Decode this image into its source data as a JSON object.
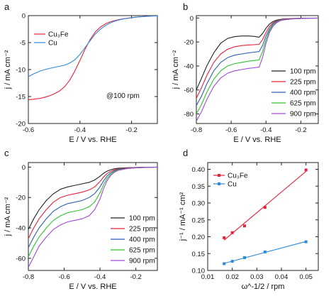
{
  "chart_data": [
    {
      "panel": "a",
      "type": "line",
      "xlabel": "E / V vs. RHE",
      "ylabel": "j / mA cm⁻²",
      "xlim": [
        -0.6,
        -0.1
      ],
      "ylim": [
        -20,
        0
      ],
      "xticks": [
        -0.6,
        -0.4,
        -0.2
      ],
      "yticks": [
        -20,
        -15,
        -10,
        -5,
        0
      ],
      "annotation": "@100 rpm",
      "legend_position": "top-left",
      "series": [
        {
          "name": "Cu₃Fe",
          "color": "#e8213a",
          "x": [
            -0.6,
            -0.58,
            -0.55,
            -0.52,
            -0.5,
            -0.48,
            -0.46,
            -0.44,
            -0.42,
            -0.4,
            -0.38,
            -0.36,
            -0.34,
            -0.32,
            -0.3,
            -0.28,
            -0.26,
            -0.24,
            -0.22,
            -0.2,
            -0.18,
            -0.16,
            -0.14,
            -0.12,
            -0.1
          ],
          "y": [
            -15.6,
            -15.5,
            -15.3,
            -14.9,
            -14.5,
            -14.0,
            -13.2,
            -12.0,
            -10.3,
            -8.3,
            -6.2,
            -4.4,
            -3.0,
            -2.1,
            -1.5,
            -1.1,
            -0.85,
            -0.65,
            -0.5,
            -0.38,
            -0.28,
            -0.2,
            -0.13,
            -0.08,
            -0.05
          ]
        },
        {
          "name": "Cu",
          "color": "#2b8ad8",
          "x": [
            -0.6,
            -0.58,
            -0.55,
            -0.52,
            -0.5,
            -0.48,
            -0.46,
            -0.44,
            -0.42,
            -0.4,
            -0.38,
            -0.36,
            -0.34,
            -0.32,
            -0.3,
            -0.28,
            -0.26,
            -0.24,
            -0.22,
            -0.2,
            -0.18,
            -0.16,
            -0.14,
            -0.12,
            -0.1
          ],
          "y": [
            -11.3,
            -10.8,
            -10.2,
            -9.8,
            -9.6,
            -9.4,
            -9.2,
            -8.8,
            -8.2,
            -7.2,
            -5.9,
            -4.6,
            -3.4,
            -2.5,
            -1.8,
            -1.3,
            -0.95,
            -0.7,
            -0.52,
            -0.38,
            -0.28,
            -0.2,
            -0.13,
            -0.08,
            -0.05
          ]
        }
      ]
    },
    {
      "panel": "b",
      "type": "line",
      "xlabel": "E / V vs. RHE",
      "ylabel": "j / mA cm⁻²",
      "xlim": [
        -0.8,
        -0.1
      ],
      "ylim": [
        -88,
        2
      ],
      "xticks": [
        -0.8,
        -0.6,
        -0.4,
        -0.2
      ],
      "yticks": [
        -80,
        -60,
        -40,
        -20,
        0
      ],
      "legend_position": "bottom-right",
      "series": [
        {
          "name": "100 rpm",
          "color": "#222222",
          "x": [
            -0.8,
            -0.77,
            -0.74,
            -0.7,
            -0.66,
            -0.62,
            -0.58,
            -0.54,
            -0.5,
            -0.47,
            -0.44,
            -0.42,
            -0.4,
            -0.38,
            -0.36,
            -0.34,
            -0.32,
            -0.3,
            -0.25,
            -0.2,
            -0.15,
            -0.1
          ],
          "y": [
            -60,
            -50,
            -40,
            -29,
            -21,
            -17,
            -15.5,
            -15,
            -15,
            -15.3,
            -16,
            -13,
            -8.5,
            -5,
            -3,
            -1.8,
            -1.2,
            -0.8,
            -0.4,
            -0.2,
            -0.1,
            -0.05
          ]
        },
        {
          "name": "225 rpm",
          "color": "#e8213a",
          "x": [
            -0.8,
            -0.77,
            -0.74,
            -0.7,
            -0.66,
            -0.62,
            -0.58,
            -0.54,
            -0.5,
            -0.47,
            -0.44,
            -0.42,
            -0.4,
            -0.38,
            -0.36,
            -0.34,
            -0.32,
            -0.3,
            -0.25,
            -0.2,
            -0.15,
            -0.1
          ],
          "y": [
            -67,
            -58,
            -48,
            -37,
            -30,
            -26,
            -24,
            -23,
            -22.5,
            -22.3,
            -22,
            -18,
            -12,
            -7,
            -4,
            -2.4,
            -1.5,
            -1.0,
            -0.5,
            -0.25,
            -0.12,
            -0.05
          ]
        },
        {
          "name": "400 rpm",
          "color": "#2d5fb5",
          "x": [
            -0.8,
            -0.77,
            -0.74,
            -0.7,
            -0.66,
            -0.62,
            -0.58,
            -0.54,
            -0.5,
            -0.47,
            -0.44,
            -0.42,
            -0.4,
            -0.38,
            -0.36,
            -0.34,
            -0.32,
            -0.3,
            -0.25,
            -0.2,
            -0.15,
            -0.1
          ],
          "y": [
            -73,
            -65,
            -55,
            -44,
            -37,
            -33,
            -31,
            -30,
            -29,
            -28.5,
            -28,
            -23,
            -15,
            -9,
            -5,
            -3,
            -1.8,
            -1.2,
            -0.6,
            -0.3,
            -0.14,
            -0.05
          ]
        },
        {
          "name": "625 rpm",
          "color": "#2ec22e",
          "x": [
            -0.8,
            -0.77,
            -0.74,
            -0.7,
            -0.66,
            -0.62,
            -0.58,
            -0.54,
            -0.5,
            -0.47,
            -0.44,
            -0.42,
            -0.4,
            -0.38,
            -0.36,
            -0.34,
            -0.32,
            -0.3,
            -0.25,
            -0.2,
            -0.15,
            -0.1
          ],
          "y": [
            -80,
            -72,
            -62,
            -51,
            -44,
            -40,
            -38,
            -37,
            -36,
            -35.5,
            -35,
            -28,
            -18,
            -10.5,
            -6,
            -3.5,
            -2.1,
            -1.4,
            -0.7,
            -0.35,
            -0.15,
            -0.05
          ]
        },
        {
          "name": "900 rpm",
          "color": "#a448d8",
          "x": [
            -0.8,
            -0.77,
            -0.74,
            -0.7,
            -0.66,
            -0.62,
            -0.58,
            -0.54,
            -0.5,
            -0.47,
            -0.44,
            -0.42,
            -0.4,
            -0.38,
            -0.36,
            -0.34,
            -0.32,
            -0.3,
            -0.25,
            -0.2,
            -0.15,
            -0.1
          ],
          "y": [
            -86,
            -78,
            -68,
            -57,
            -50,
            -46,
            -44,
            -43,
            -42,
            -41.5,
            -41,
            -33,
            -21,
            -12,
            -7,
            -4,
            -2.4,
            -1.6,
            -0.8,
            -0.4,
            -0.17,
            -0.05
          ]
        }
      ]
    },
    {
      "panel": "c",
      "type": "line",
      "xlabel": "E / V vs. RHE",
      "ylabel": "j / mA cm⁻²",
      "xlim": [
        -0.8,
        -0.08
      ],
      "ylim": [
        -68,
        3
      ],
      "xticks": [
        -0.8,
        -0.6,
        -0.4,
        -0.2
      ],
      "yticks": [
        -60,
        -40,
        -20,
        0
      ],
      "legend_position": "bottom-right",
      "series": [
        {
          "name": "100 rpm",
          "color": "#222222",
          "x": [
            -0.8,
            -0.77,
            -0.74,
            -0.7,
            -0.66,
            -0.62,
            -0.58,
            -0.54,
            -0.5,
            -0.46,
            -0.43,
            -0.4,
            -0.38,
            -0.36,
            -0.34,
            -0.32,
            -0.3,
            -0.25,
            -0.2,
            -0.15,
            -0.1,
            -0.08
          ],
          "y": [
            -41,
            -34,
            -28,
            -22,
            -17.5,
            -14.5,
            -13,
            -12,
            -11,
            -10,
            -8.5,
            -6,
            -4,
            -2.6,
            -1.7,
            -1.1,
            -0.8,
            -0.4,
            -0.2,
            -0.1,
            -0.05,
            -0.03
          ]
        },
        {
          "name": "225 rpm",
          "color": "#e8213a",
          "x": [
            -0.8,
            -0.77,
            -0.74,
            -0.7,
            -0.66,
            -0.62,
            -0.58,
            -0.54,
            -0.5,
            -0.46,
            -0.43,
            -0.4,
            -0.38,
            -0.36,
            -0.34,
            -0.32,
            -0.3,
            -0.25,
            -0.2,
            -0.15,
            -0.1,
            -0.08
          ],
          "y": [
            -47,
            -40,
            -34,
            -28,
            -23,
            -20,
            -18.5,
            -17.5,
            -16.5,
            -15,
            -13,
            -9.5,
            -6.5,
            -4.2,
            -2.7,
            -1.8,
            -1.2,
            -0.6,
            -0.3,
            -0.14,
            -0.06,
            -0.03
          ]
        },
        {
          "name": "400 rpm",
          "color": "#2d5fb5",
          "x": [
            -0.8,
            -0.77,
            -0.74,
            -0.7,
            -0.66,
            -0.62,
            -0.58,
            -0.54,
            -0.5,
            -0.46,
            -0.43,
            -0.4,
            -0.38,
            -0.36,
            -0.34,
            -0.32,
            -0.3,
            -0.25,
            -0.2,
            -0.15,
            -0.1,
            -0.08
          ],
          "y": [
            -53,
            -46,
            -40,
            -34,
            -29,
            -26,
            -24,
            -23,
            -22,
            -20,
            -17.5,
            -13,
            -9,
            -5.8,
            -3.7,
            -2.4,
            -1.6,
            -0.8,
            -0.4,
            -0.18,
            -0.07,
            -0.03
          ]
        },
        {
          "name": "625 rpm",
          "color": "#2ec22e",
          "x": [
            -0.8,
            -0.77,
            -0.74,
            -0.7,
            -0.66,
            -0.62,
            -0.58,
            -0.54,
            -0.5,
            -0.46,
            -0.43,
            -0.4,
            -0.38,
            -0.36,
            -0.34,
            -0.32,
            -0.3,
            -0.25,
            -0.2,
            -0.15,
            -0.1,
            -0.08
          ],
          "y": [
            -59,
            -52,
            -46,
            -40,
            -35,
            -32,
            -30,
            -29,
            -28,
            -26,
            -23,
            -17,
            -11.5,
            -7.3,
            -4.6,
            -2.9,
            -1.9,
            -0.9,
            -0.45,
            -0.2,
            -0.08,
            -0.03
          ]
        },
        {
          "name": "900 rpm",
          "color": "#a448d8",
          "x": [
            -0.8,
            -0.77,
            -0.74,
            -0.7,
            -0.66,
            -0.62,
            -0.58,
            -0.54,
            -0.5,
            -0.46,
            -0.43,
            -0.4,
            -0.38,
            -0.36,
            -0.34,
            -0.32,
            -0.3,
            -0.25,
            -0.2,
            -0.15,
            -0.1,
            -0.08
          ],
          "y": [
            -66,
            -59,
            -52,
            -46,
            -41,
            -38,
            -36,
            -35,
            -34,
            -32,
            -28,
            -21,
            -14,
            -8.8,
            -5.4,
            -3.4,
            -2.2,
            -1.0,
            -0.5,
            -0.22,
            -0.09,
            -0.03
          ]
        }
      ]
    },
    {
      "panel": "d",
      "type": "scatter",
      "xlabel": "ω^-1/2 / rpm",
      "ylabel": "j⁻¹ / mA⁻¹ cm²",
      "xlim": [
        0.01,
        0.055
      ],
      "ylim": [
        0.1,
        0.42
      ],
      "xticks": [
        0.01,
        0.02,
        0.03,
        0.04,
        0.05
      ],
      "yticks": [
        0.1,
        0.15,
        0.2,
        0.25,
        0.3,
        0.35,
        0.4
      ],
      "legend_position": "top-left",
      "series": [
        {
          "name": "Cu₃Fe",
          "color": "#e8213a",
          "fit_line": true,
          "x": [
            0.0167,
            0.02,
            0.025,
            0.0333,
            0.05
          ],
          "y": [
            0.197,
            0.212,
            0.232,
            0.287,
            0.398
          ]
        },
        {
          "name": "Cu",
          "color": "#2b8ad8",
          "fit_line": true,
          "x": [
            0.0167,
            0.02,
            0.025,
            0.0333,
            0.05
          ],
          "y": [
            0.12,
            0.127,
            0.138,
            0.155,
            0.185
          ]
        }
      ]
    }
  ]
}
